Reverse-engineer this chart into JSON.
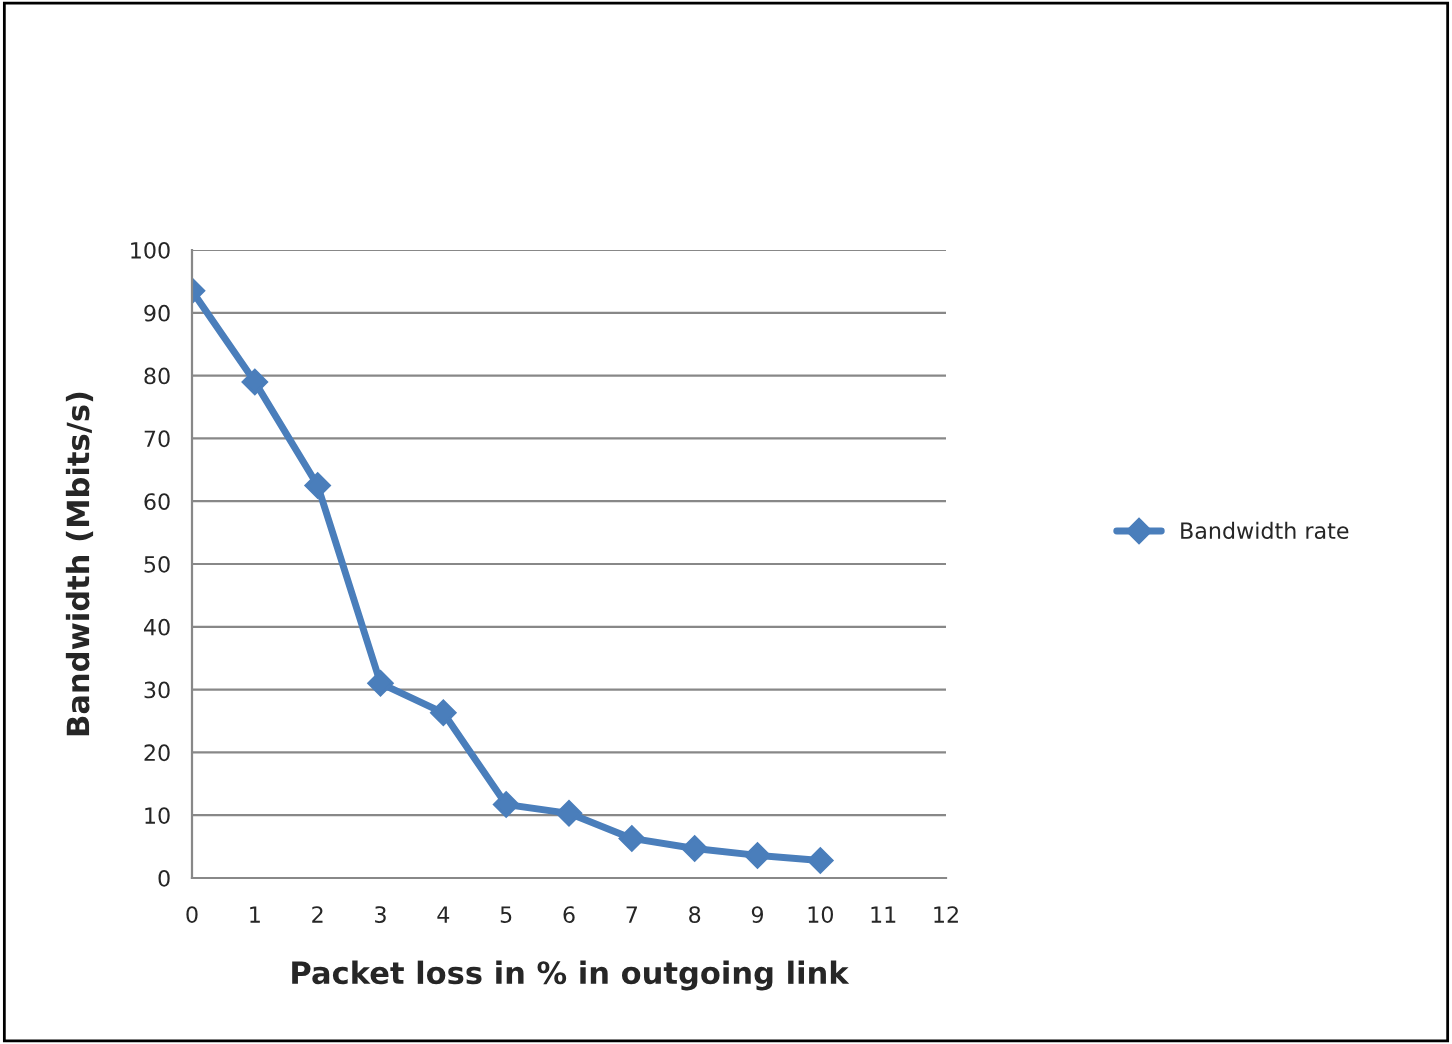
{
  "chart_data": {
    "type": "line",
    "xlabel": "Packet loss in % in outgoing link",
    "ylabel": "Bandwidth (Mbits/s)",
    "x": [
      0,
      1,
      2,
      3,
      4,
      5,
      6,
      7,
      8,
      9,
      10
    ],
    "series": [
      {
        "name": "Bandwidth rate",
        "color": "#4a7ebb",
        "values": [
          93.5,
          79,
          62.5,
          31,
          26.3,
          11.7,
          10.3,
          6.3,
          4.7,
          3.6,
          2.8
        ]
      }
    ],
    "xlim": [
      0,
      12
    ],
    "xticks": [
      0,
      1,
      2,
      3,
      4,
      5,
      6,
      7,
      8,
      9,
      10,
      11,
      12
    ],
    "ylim": [
      0,
      100
    ],
    "yticks": [
      0,
      10,
      20,
      30,
      40,
      50,
      60,
      70,
      80,
      90,
      100
    ],
    "grid": "y",
    "legend": "right",
    "marker": "diamond",
    "line_style": "solid"
  }
}
